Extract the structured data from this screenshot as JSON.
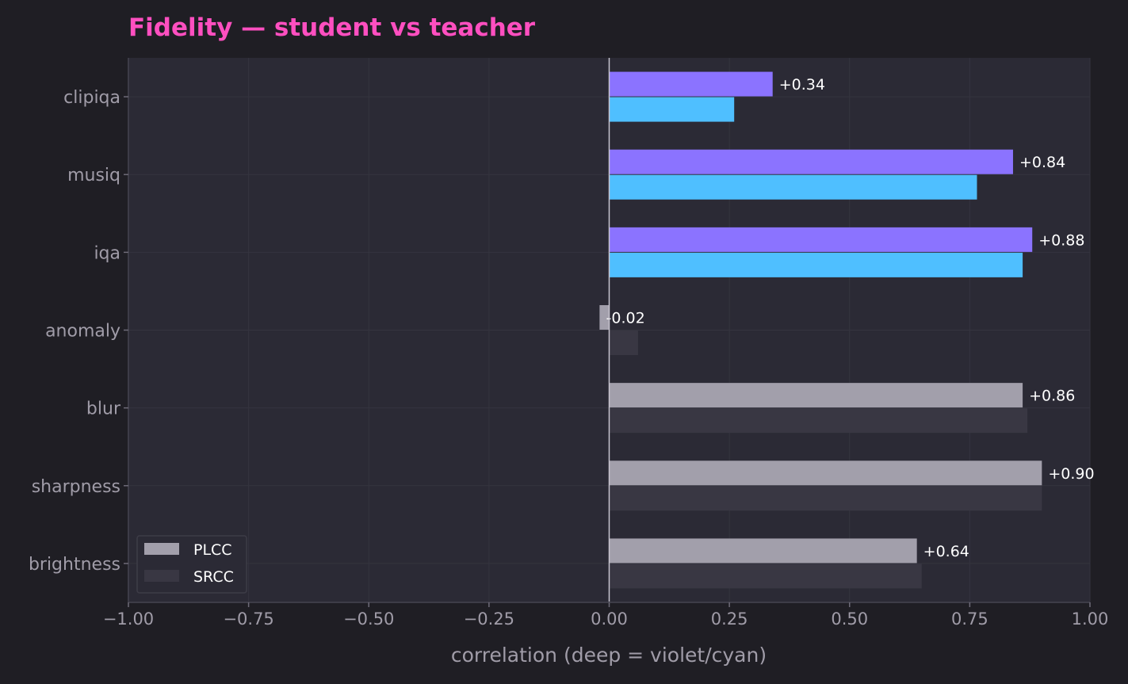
{
  "chart_data": {
    "type": "bar",
    "orientation": "horizontal",
    "title": "Fidelity — student vs teacher",
    "xlabel": "correlation  (deep = violet/cyan)",
    "ylabel": "",
    "xlim": [
      -1.0,
      1.0
    ],
    "x_ticks": [
      "−1.00",
      "−0.75",
      "−0.50",
      "−0.25",
      "0.00",
      "0.25",
      "0.50",
      "0.75",
      "1.00"
    ],
    "x_tick_values": [
      -1.0,
      -0.75,
      -0.5,
      -0.25,
      0.0,
      0.25,
      0.5,
      0.75,
      1.0
    ],
    "grid": true,
    "legend_position": "bottom-left",
    "categories": [
      "clipiqa",
      "musiq",
      "iqa",
      "anomaly",
      "blur",
      "sharpness",
      "brightness"
    ],
    "deep": [
      true,
      true,
      true,
      false,
      false,
      false,
      false
    ],
    "series": [
      {
        "name": "PLCC",
        "values": [
          0.34,
          0.84,
          0.88,
          -0.02,
          0.86,
          0.9,
          0.64
        ],
        "labels": [
          "+0.34",
          "+0.84",
          "+0.88",
          "-0.02",
          "+0.86",
          "+0.90",
          "+0.64"
        ],
        "color_deep": "#8b73ff",
        "color_classic": "#a29fab"
      },
      {
        "name": "SRCC",
        "values": [
          0.26,
          0.765,
          0.86,
          0.06,
          0.87,
          0.9,
          0.65
        ],
        "color_deep": "#4fbfff",
        "color_classic": "#393743"
      }
    ]
  },
  "legend": {
    "items": [
      {
        "label": "PLCC",
        "color": "#a29fab"
      },
      {
        "label": "SRCC",
        "color": "#393743"
      }
    ]
  },
  "colors": {
    "background": "#1f1e24",
    "plot_background": "#2b2a35",
    "grid": "#35343f",
    "title": "#ff4fc0",
    "zero_line": "#c8c5d0"
  }
}
